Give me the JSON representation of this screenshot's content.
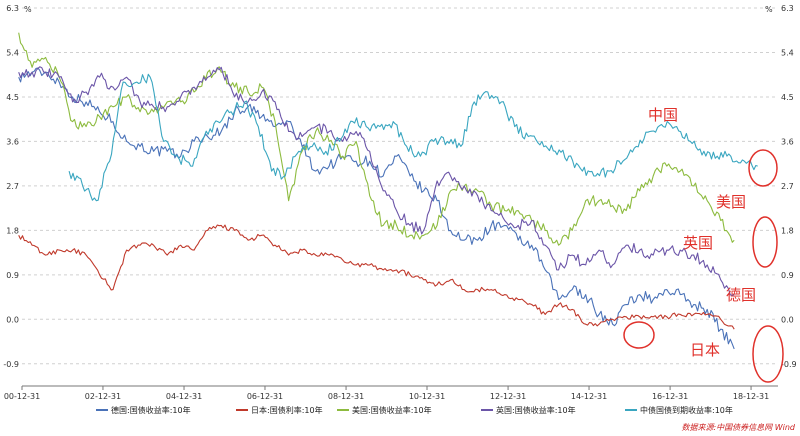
{
  "chart_data": {
    "type": "line",
    "y_unit": "%",
    "ylim": [
      -1.35,
      6.3
    ],
    "y_ticks": [
      "6.3",
      "5.4",
      "4.5",
      "3.6",
      "2.7",
      "1.8",
      "0.9",
      "0.0",
      "-0.9"
    ],
    "x_ticks": [
      "00-12-31",
      "02-12-31",
      "04-12-31",
      "06-12-31",
      "08-12-31",
      "10-12-31",
      "12-12-31",
      "14-12-31",
      "16-12-31",
      "18-12-31"
    ],
    "xlim": [
      "2000-12-31",
      "2019-08-31"
    ],
    "grid": "horizontal dashed",
    "series": [
      {
        "name": "德国:国债收益率:10年",
        "color": "#4a72b8",
        "start": "2000-12-31",
        "values": [
          4.9,
          5.0,
          5.0,
          4.8,
          4.5,
          4.4,
          4.2,
          4.0,
          3.6,
          3.5,
          3.4,
          3.4,
          3.3,
          3.6,
          3.7,
          3.8,
          4.2,
          4.3,
          4.1,
          3.9,
          4.0,
          3.5,
          3.0,
          3.1,
          3.3,
          3.2,
          3.2,
          2.9,
          3.3,
          2.9,
          2.6,
          2.4,
          1.8,
          1.6,
          1.6,
          1.9,
          1.9,
          1.6,
          1.5,
          1.0,
          0.4,
          0.6,
          0.5,
          0.1,
          -0.1,
          0.3,
          0.5,
          0.4,
          0.6,
          0.5,
          0.3,
          0.2,
          -0.2,
          -0.6
        ]
      },
      {
        "name": "日本:国债利率:10年",
        "color": "#c0392b",
        "start": "2000-12-31",
        "values": [
          1.7,
          1.5,
          1.3,
          1.4,
          1.4,
          1.3,
          0.9,
          0.6,
          1.4,
          1.5,
          1.5,
          1.3,
          1.5,
          1.4,
          1.8,
          1.9,
          1.8,
          1.6,
          1.7,
          1.5,
          1.3,
          1.4,
          1.3,
          1.3,
          1.2,
          1.1,
          1.1,
          1.0,
          1.0,
          0.9,
          0.8,
          0.7,
          0.8,
          0.6,
          0.6,
          0.6,
          0.5,
          0.4,
          0.3,
          0.1,
          0.3,
          0.2,
          -0.1,
          -0.1,
          0.0,
          0.05,
          0.05,
          0.05,
          0.05,
          0.1,
          0.1,
          0.1,
          0.0,
          -0.2
        ]
      },
      {
        "name": "美国:国债收益率:10年",
        "color": "#8dbb3f",
        "start": "2000-12-31",
        "values": [
          5.8,
          5.1,
          5.3,
          4.9,
          4.0,
          3.9,
          4.1,
          4.3,
          4.5,
          4.2,
          4.2,
          4.4,
          4.4,
          4.6,
          5.0,
          5.0,
          4.7,
          4.6,
          4.7,
          4.0,
          2.4,
          3.4,
          3.8,
          3.6,
          3.3,
          3.6,
          2.5,
          1.9,
          1.9,
          1.7,
          1.7,
          1.9,
          2.6,
          2.7,
          2.6,
          2.3,
          2.2,
          2.2,
          2.0,
          1.8,
          1.5,
          1.8,
          2.4,
          2.4,
          2.3,
          2.2,
          2.6,
          2.9,
          3.1,
          3.0,
          2.7,
          2.4,
          2.0,
          1.6
        ]
      },
      {
        "name": "英国:国债收益率:10年",
        "color": "#6b55a8",
        "start": "2000-12-31",
        "values": [
          5.0,
          5.0,
          5.0,
          4.9,
          4.4,
          4.6,
          4.9,
          4.7,
          4.9,
          4.4,
          4.3,
          4.3,
          4.5,
          4.7,
          4.9,
          5.1,
          4.5,
          4.4,
          4.6,
          4.4,
          3.8,
          3.7,
          3.9,
          3.8,
          3.6,
          3.8,
          3.4,
          2.6,
          2.2,
          1.9,
          1.8,
          2.8,
          2.9,
          2.7,
          2.5,
          2.2,
          2.0,
          1.9,
          2.0,
          1.5,
          1.0,
          1.3,
          1.1,
          1.4,
          1.1,
          1.5,
          1.4,
          1.3,
          1.4,
          1.4,
          1.3,
          1.1,
          0.8,
          0.5
        ]
      },
      {
        "name": "中债国债到期收益率:10年",
        "color": "#3aa6c0",
        "start": "2002-03-31",
        "values": [
          3.0,
          2.7,
          2.4,
          3.2,
          4.8,
          4.8,
          4.9,
          3.6,
          3.3,
          3.1,
          3.7,
          4.0,
          4.2,
          4.4,
          3.9,
          3.0,
          2.9,
          3.4,
          3.5,
          3.4,
          3.6,
          4.0,
          3.9,
          3.9,
          4.0,
          3.5,
          3.3,
          3.6,
          3.6,
          3.5,
          4.4,
          4.6,
          4.4,
          3.9,
          3.7,
          3.6,
          3.4,
          3.3,
          3.0,
          2.9,
          3.0,
          3.2,
          3.5,
          3.8,
          3.9,
          3.9,
          3.6,
          3.4,
          3.3,
          3.3,
          3.2,
          3.1
        ]
      }
    ],
    "annotations": [
      "中国",
      "美国",
      "英国",
      "德国",
      "日本"
    ],
    "source": "数据来源:中国债券信息网 Wind"
  }
}
